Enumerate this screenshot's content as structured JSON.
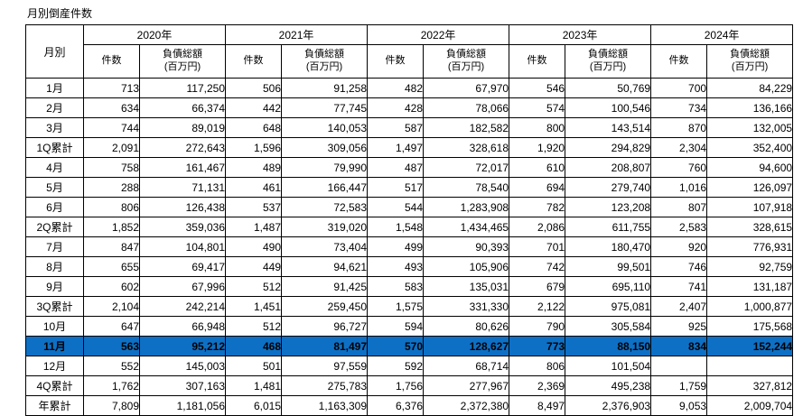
{
  "title": "月別倒産件数",
  "chart_data": {
    "type": "table",
    "title": "月別倒産件数",
    "corner_label": "月別",
    "years": [
      "2020年",
      "2021年",
      "2022年",
      "2023年",
      "2024年"
    ],
    "measures": [
      "件数",
      "負債総額\n(百万円)"
    ],
    "highlight_color": "#0d70c5",
    "rows": [
      {
        "label": "1月",
        "values": [
          "713",
          "117,250",
          "506",
          "91,258",
          "482",
          "67,970",
          "546",
          "50,769",
          "700",
          "84,229"
        ]
      },
      {
        "label": "2月",
        "values": [
          "634",
          "66,374",
          "442",
          "77,745",
          "428",
          "78,066",
          "574",
          "100,546",
          "734",
          "136,166"
        ]
      },
      {
        "label": "3月",
        "values": [
          "744",
          "89,019",
          "648",
          "140,053",
          "587",
          "182,582",
          "800",
          "143,514",
          "870",
          "132,005"
        ]
      },
      {
        "label": "1Q累計",
        "values": [
          "2,091",
          "272,643",
          "1,596",
          "309,056",
          "1,497",
          "328,618",
          "1,920",
          "294,829",
          "2,304",
          "352,400"
        ]
      },
      {
        "label": "4月",
        "values": [
          "758",
          "161,467",
          "489",
          "79,990",
          "487",
          "72,017",
          "610",
          "208,807",
          "760",
          "94,600"
        ]
      },
      {
        "label": "5月",
        "values": [
          "288",
          "71,131",
          "461",
          "166,447",
          "517",
          "78,540",
          "694",
          "279,740",
          "1,016",
          "126,097"
        ]
      },
      {
        "label": "6月",
        "values": [
          "806",
          "126,438",
          "537",
          "72,583",
          "544",
          "1,283,908",
          "782",
          "123,208",
          "807",
          "107,918"
        ]
      },
      {
        "label": "2Q累計",
        "values": [
          "1,852",
          "359,036",
          "1,487",
          "319,020",
          "1,548",
          "1,434,465",
          "2,086",
          "611,755",
          "2,583",
          "328,615"
        ]
      },
      {
        "label": "7月",
        "values": [
          "847",
          "104,801",
          "490",
          "73,404",
          "499",
          "90,393",
          "701",
          "180,470",
          "920",
          "776,931"
        ]
      },
      {
        "label": "8月",
        "values": [
          "655",
          "69,417",
          "449",
          "94,621",
          "493",
          "105,906",
          "742",
          "99,501",
          "746",
          "92,759"
        ]
      },
      {
        "label": "9月",
        "values": [
          "602",
          "67,996",
          "512",
          "91,425",
          "583",
          "135,031",
          "679",
          "695,110",
          "741",
          "131,187"
        ]
      },
      {
        "label": "3Q累計",
        "values": [
          "2,104",
          "242,214",
          "1,451",
          "259,450",
          "1,575",
          "331,330",
          "2,122",
          "975,081",
          "2,407",
          "1,000,877"
        ]
      },
      {
        "label": "10月",
        "values": [
          "647",
          "66,948",
          "512",
          "96,727",
          "594",
          "80,626",
          "790",
          "305,584",
          "925",
          "175,568"
        ]
      },
      {
        "label": "11月",
        "values": [
          "563",
          "95,212",
          "468",
          "81,497",
          "570",
          "128,627",
          "773",
          "88,150",
          "834",
          "152,244"
        ],
        "highlight": true
      },
      {
        "label": "12月",
        "values": [
          "552",
          "145,003",
          "501",
          "97,559",
          "592",
          "68,714",
          "806",
          "101,504",
          "",
          ""
        ]
      },
      {
        "label": "4Q累計",
        "values": [
          "1,762",
          "307,163",
          "1,481",
          "275,783",
          "1,756",
          "277,967",
          "2,369",
          "495,238",
          "1,759",
          "327,812"
        ]
      },
      {
        "label": "年累計",
        "values": [
          "7,809",
          "1,181,056",
          "6,015",
          "1,163,309",
          "6,376",
          "2,372,380",
          "8,497",
          "2,376,903",
          "9,053",
          "2,009,704"
        ]
      }
    ]
  }
}
